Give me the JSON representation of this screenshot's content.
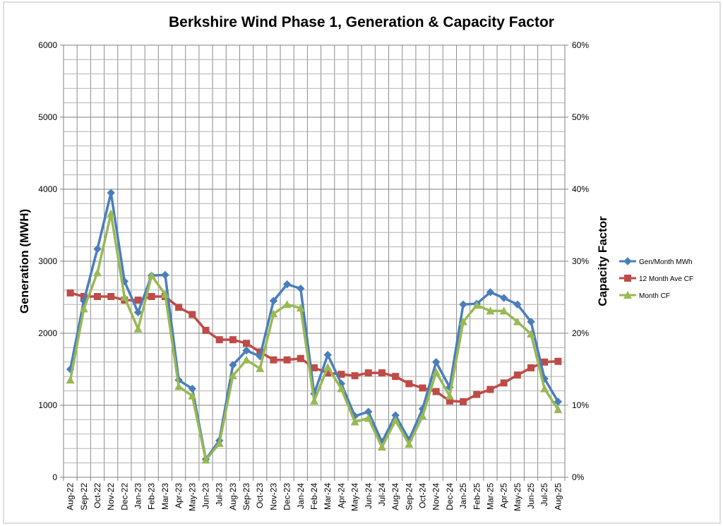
{
  "chart_data": {
    "type": "line",
    "title": "Berkshire Wind Phase 1, Generation & Capacity Factor",
    "ylabel": "Generation (MWH)",
    "y2label": "Capacity Factor",
    "xlabel": "",
    "ylim": [
      0,
      6000
    ],
    "y2lim": [
      0,
      0.6
    ],
    "yticks": [
      "0",
      "1000",
      "2000",
      "3000",
      "4000",
      "5000",
      "6000"
    ],
    "y2ticks": [
      "0%",
      "10%",
      "20%",
      "30%",
      "40%",
      "50%",
      "60%"
    ],
    "grid": true,
    "legend_position": "right",
    "categories": [
      "Aug-22",
      "Sep-22",
      "Oct-22",
      "Nov-22",
      "Dec-22",
      "Jan-23",
      "Feb-23",
      "Mar-23",
      "Apr-23",
      "May-23",
      "Jun-23",
      "Jul-23",
      "Aug-23",
      "Sep-23",
      "Oct-23",
      "Nov-23",
      "Dec-23",
      "Jan-24",
      "Feb-24",
      "Mar-24",
      "Apr-24",
      "May-24",
      "Jun-24",
      "Jul-24",
      "Aug-24",
      "Sep-24",
      "Oct-24",
      "Nov-24",
      "Dec-24",
      "Jan-25",
      "Feb-25",
      "Mar-25",
      "Apr-25",
      "May-25",
      "Jun-25",
      "Jul-25",
      "Aug-25"
    ],
    "series": [
      {
        "name": "Gen/Month MWh",
        "axis": "left",
        "color": "#4a7ebb",
        "marker": "diamond",
        "values": [
          1500,
          2450,
          3170,
          3950,
          2720,
          2290,
          2800,
          2810,
          1350,
          1230,
          250,
          510,
          1560,
          1760,
          1680,
          2450,
          2680,
          2620,
          1160,
          1700,
          1300,
          850,
          910,
          490,
          860,
          520,
          950,
          1600,
          1250,
          2400,
          2410,
          2570,
          2490,
          2400,
          2160,
          1370,
          1050
        ]
      },
      {
        "name": "12  Month Ave CF",
        "axis": "right",
        "color": "#be4b48",
        "marker": "square",
        "values": [
          0.256,
          0.251,
          0.251,
          0.251,
          0.246,
          0.246,
          0.251,
          0.251,
          0.236,
          0.226,
          0.204,
          0.191,
          0.191,
          0.186,
          0.174,
          0.163,
          0.163,
          0.165,
          0.152,
          0.145,
          0.143,
          0.141,
          0.145,
          0.145,
          0.14,
          0.13,
          0.124,
          0.119,
          0.106,
          0.105,
          0.115,
          0.122,
          0.131,
          0.142,
          0.152,
          0.16,
          0.161
        ]
      },
      {
        "name": "Month CF",
        "axis": "right",
        "color": "#98b954",
        "marker": "triangle",
        "values": [
          0.135,
          0.234,
          0.284,
          0.366,
          0.25,
          0.206,
          0.28,
          0.254,
          0.126,
          0.113,
          0.024,
          0.047,
          0.141,
          0.163,
          0.151,
          0.227,
          0.24,
          0.235,
          0.106,
          0.153,
          0.123,
          0.077,
          0.082,
          0.042,
          0.079,
          0.046,
          0.085,
          0.146,
          0.113,
          0.216,
          0.239,
          0.231,
          0.231,
          0.216,
          0.199,
          0.123,
          0.094
        ]
      }
    ]
  }
}
